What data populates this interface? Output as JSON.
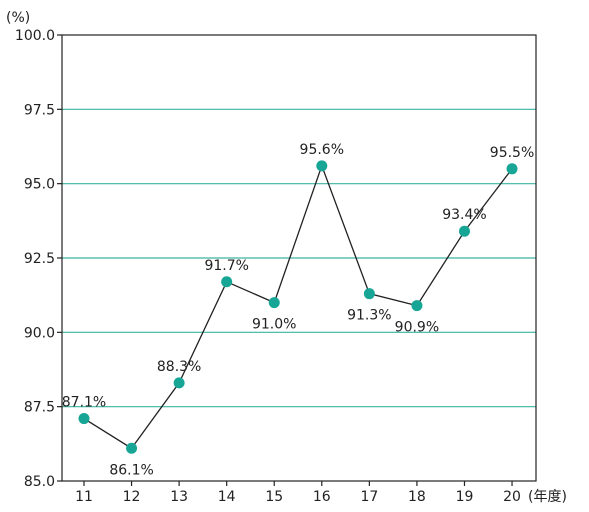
{
  "chart_data": {
    "type": "line",
    "title": "",
    "ylabel": "(%)",
    "xlabel": "(年度)",
    "categories": [
      "11",
      "12",
      "13",
      "14",
      "15",
      "16",
      "17",
      "18",
      "19",
      "20"
    ],
    "series": [
      {
        "values": [
          87.1,
          86.1,
          88.3,
          91.7,
          91.0,
          95.6,
          91.3,
          90.9,
          93.4,
          95.5
        ],
        "data_labels": [
          "87.1%",
          "86.1%",
          "88.3%",
          "91.7%",
          "91.0%",
          "95.6%",
          "91.3%",
          "90.9%",
          "93.4%",
          "95.5%"
        ]
      }
    ],
    "ylim": [
      85.0,
      100.0
    ],
    "yticks": [
      85.0,
      87.5,
      90.0,
      92.5,
      95.0,
      97.5,
      100.0
    ],
    "ytick_labels": [
      "85.0",
      "87.5",
      "90.0",
      "92.5",
      "95.0",
      "97.5",
      "100.0"
    ],
    "grid": "horizontal",
    "colors": {
      "grid": "#3cb4a0",
      "line": "#222222",
      "marker": "#17a596",
      "axis": "#222222"
    }
  }
}
